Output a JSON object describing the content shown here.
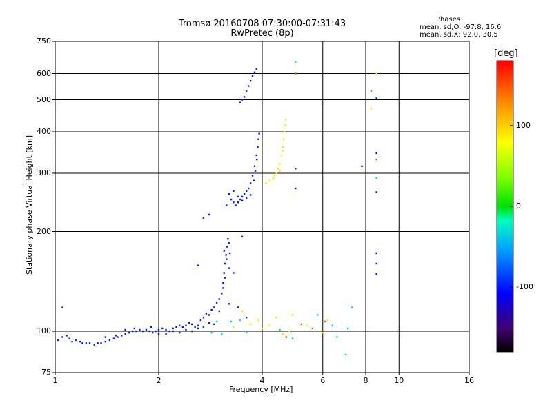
{
  "header": {
    "title_line1": "Tromsø 20160708 07:30:00-07:31:43",
    "title_line2": "RwPretec (8p)",
    "phases_title": "Phases",
    "phases_line1": "mean, sd,O: -97.8, 16.6",
    "phases_line2": "mean, sd,X:  92.0, 30.5"
  },
  "colorbar": {
    "label": "[deg]",
    "min": -180,
    "max": 180,
    "ticks": [
      "100",
      "0",
      "-100"
    ],
    "tick_values": [
      100,
      0,
      -100
    ]
  },
  "chart_data": {
    "type": "scatter",
    "xlabel": "Frequency [MHz]",
    "ylabel": "Stationary phase Virtual Height [km]",
    "xscale": "log2",
    "yscale": "log",
    "xlim": [
      1,
      16
    ],
    "ylim": [
      75,
      750
    ],
    "x_ticks": [
      1,
      2,
      4,
      6,
      8,
      10,
      16
    ],
    "x_tick_labels": [
      "1",
      "2",
      "4",
      "6",
      "8",
      "10",
      "16"
    ],
    "y_ticks": [
      75,
      100,
      200,
      300,
      400,
      500,
      600,
      750
    ],
    "y_tick_labels": [
      "75",
      "100",
      "200",
      "300",
      "400",
      "500",
      "600",
      "750"
    ],
    "grid": true,
    "series": [
      {
        "color_phase_deg": -100,
        "points": [
          [
            1.02,
            94
          ],
          [
            1.05,
            96
          ],
          [
            1.08,
            97
          ],
          [
            1.1,
            95
          ],
          [
            1.12,
            93
          ],
          [
            1.15,
            94
          ],
          [
            1.18,
            93
          ],
          [
            1.2,
            92
          ],
          [
            1.23,
            92
          ],
          [
            1.26,
            92
          ],
          [
            1.3,
            91
          ],
          [
            1.33,
            92
          ],
          [
            1.36,
            92
          ],
          [
            1.4,
            93
          ],
          [
            1.44,
            94
          ],
          [
            1.48,
            95
          ],
          [
            1.52,
            96
          ],
          [
            1.56,
            97
          ],
          [
            1.6,
            98
          ],
          [
            1.64,
            99
          ],
          [
            1.68,
            100
          ],
          [
            1.72,
            100
          ],
          [
            1.76,
            101
          ],
          [
            1.8,
            100
          ],
          [
            1.84,
            101
          ],
          [
            1.88,
            100
          ],
          [
            1.92,
            99
          ],
          [
            1.96,
            100
          ],
          [
            2.0,
            101
          ],
          [
            2.05,
            102
          ],
          [
            2.1,
            101
          ],
          [
            2.15,
            100
          ],
          [
            2.2,
            102
          ],
          [
            2.25,
            103
          ],
          [
            2.3,
            104
          ],
          [
            2.35,
            103
          ],
          [
            2.4,
            104
          ],
          [
            2.45,
            106
          ],
          [
            2.5,
            105
          ],
          [
            2.55,
            103
          ],
          [
            2.6,
            104
          ],
          [
            2.65,
            108
          ],
          [
            2.7,
            110
          ],
          [
            2.75,
            113
          ],
          [
            2.8,
            112
          ],
          [
            2.85,
            116
          ],
          [
            2.9,
            118
          ],
          [
            2.95,
            122
          ],
          [
            3.0,
            125
          ],
          [
            1.05,
            118
          ],
          [
            1.5,
            97
          ],
          [
            1.6,
            101
          ],
          [
            1.7,
            102
          ],
          [
            1.9,
            103
          ],
          [
            2.1,
            98
          ],
          [
            2.3,
            99
          ],
          [
            2.5,
            100
          ],
          [
            2.7,
            103
          ],
          [
            2.9,
            105
          ],
          [
            1.4,
            96
          ],
          [
            3.05,
            130
          ],
          [
            3.08,
            140
          ],
          [
            3.1,
            150
          ],
          [
            3.12,
            160
          ],
          [
            3.14,
            170
          ],
          [
            3.16,
            180
          ],
          [
            3.18,
            190
          ],
          [
            3.1,
            175
          ],
          [
            3.15,
            165
          ],
          [
            3.2,
            155
          ],
          [
            3.12,
            145
          ],
          [
            3.08,
            135
          ],
          [
            3.22,
            172
          ],
          [
            3.2,
            185
          ],
          [
            2.6,
            158
          ],
          [
            3.3,
            150
          ],
          [
            3.5,
            193
          ],
          [
            2.7,
            220
          ],
          [
            2.8,
            225
          ],
          [
            3.15,
            240
          ],
          [
            3.2,
            260
          ],
          [
            3.25,
            250
          ],
          [
            3.3,
            245
          ],
          [
            3.35,
            240
          ],
          [
            3.4,
            245
          ],
          [
            3.45,
            250
          ],
          [
            3.5,
            255
          ],
          [
            3.55,
            260
          ],
          [
            3.6,
            265
          ],
          [
            3.65,
            270
          ],
          [
            3.7,
            280
          ],
          [
            3.75,
            295
          ],
          [
            3.8,
            315
          ],
          [
            3.85,
            340
          ],
          [
            3.88,
            360
          ],
          [
            3.9,
            380
          ],
          [
            3.92,
            395
          ],
          [
            3.3,
            265
          ],
          [
            3.4,
            255
          ],
          [
            3.5,
            248
          ],
          [
            3.6,
            252
          ],
          [
            3.7,
            258
          ],
          [
            3.78,
            285
          ],
          [
            3.82,
            305
          ],
          [
            3.86,
            330
          ],
          [
            3.45,
            490
          ],
          [
            3.5,
            500
          ],
          [
            3.55,
            510
          ],
          [
            3.6,
            530
          ],
          [
            3.65,
            550
          ],
          [
            3.7,
            570
          ],
          [
            3.75,
            590
          ],
          [
            3.8,
            605
          ],
          [
            3.85,
            620
          ],
          [
            5.0,
            310
          ],
          [
            5.0,
            270
          ],
          [
            7.8,
            315
          ],
          [
            8.6,
            345
          ],
          [
            8.6,
            263
          ],
          [
            8.6,
            172
          ],
          [
            8.6,
            160
          ],
          [
            8.6,
            149
          ],
          [
            8.6,
            505
          ],
          [
            2.0,
            98
          ],
          [
            2.2,
            100
          ],
          [
            2.4,
            101
          ],
          [
            2.6,
            102
          ],
          [
            2.8,
            106
          ],
          [
            3.0,
            115
          ],
          [
            3.2,
            121
          ],
          [
            3.4,
            118
          ],
          [
            3.6,
            110
          ]
        ]
      },
      {
        "color_phase_deg": 90,
        "points": [
          [
            4.1,
            280
          ],
          [
            4.2,
            285
          ],
          [
            4.3,
            290
          ],
          [
            4.35,
            295
          ],
          [
            4.4,
            300
          ],
          [
            4.45,
            310
          ],
          [
            4.5,
            320
          ],
          [
            4.55,
            340
          ],
          [
            4.6,
            360
          ],
          [
            4.62,
            380
          ],
          [
            4.64,
            400
          ],
          [
            4.66,
            420
          ],
          [
            4.68,
            435
          ],
          [
            4.3,
            288
          ],
          [
            4.5,
            305
          ],
          [
            4.58,
            350
          ],
          [
            3.9,
            108
          ],
          [
            4.2,
            104
          ],
          [
            4.4,
            110
          ],
          [
            4.6,
            98
          ],
          [
            4.8,
            100
          ],
          [
            4.9,
            112
          ],
          [
            5.4,
            104
          ],
          [
            6.0,
            99
          ],
          [
            6.2,
            108
          ],
          [
            3.3,
            103
          ],
          [
            3.5,
            115
          ],
          [
            3.7,
            105
          ],
          [
            4.0,
            102
          ],
          [
            8.3,
            470
          ],
          [
            8.6,
            600
          ]
        ]
      },
      {
        "color_phase_deg": 150,
        "points": [
          [
            5.0,
            600
          ],
          [
            8.3,
            530
          ],
          [
            8.6,
            330
          ],
          [
            5.2,
            105
          ],
          [
            5.6,
            102
          ],
          [
            6.1,
            107
          ],
          [
            4.7,
            96
          ]
        ]
      },
      {
        "color_phase_deg": -30,
        "points": [
          [
            5.0,
            650
          ],
          [
            8.6,
            290
          ],
          [
            5.8,
            112
          ],
          [
            6.4,
            104
          ],
          [
            7.0,
            85
          ],
          [
            7.3,
            118
          ],
          [
            4.5,
            101
          ],
          [
            4.9,
            95
          ],
          [
            3.6,
            99
          ],
          [
            2.85,
            99
          ],
          [
            2.95,
            107
          ],
          [
            3.05,
            98
          ],
          [
            3.25,
            107
          ],
          [
            3.45,
            108
          ],
          [
            6.6,
            96
          ],
          [
            7.1,
            102
          ]
        ]
      }
    ]
  }
}
